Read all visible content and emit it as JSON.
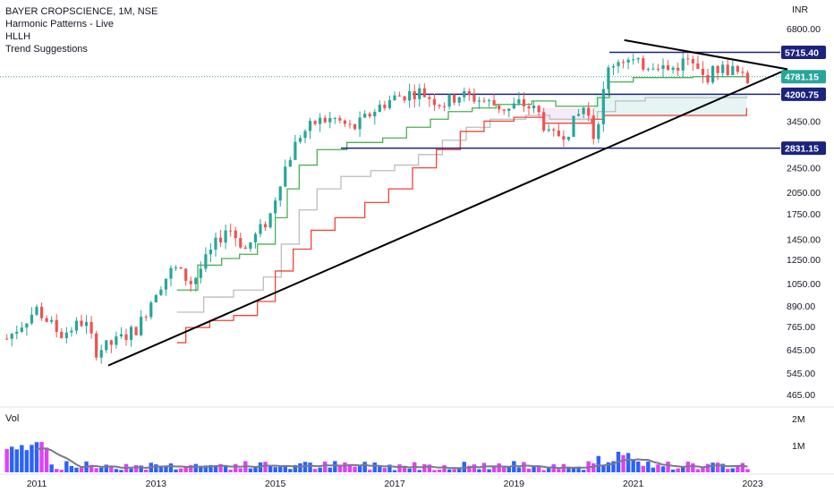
{
  "chart_data": {
    "type": "candlestick",
    "title": "BAYER CROPSCIENCE, 1M, NSE",
    "indicators": [
      "Harmonic Patterns - Live",
      "HLLH",
      "Trend Suggestions"
    ],
    "volume_label": "Vol",
    "price_axis_unit": "INR",
    "price_axis_scale": "log",
    "price_ticks": [
      "6800.00",
      "5715.40",
      "4781.15",
      "4200.75",
      "3450.00",
      "2831.15",
      "2450.00",
      "2050.00",
      "1750.00",
      "1450.00",
      "1250.00",
      "1050.00",
      "890.00",
      "765.00",
      "645.00",
      "545.00",
      "465.00"
    ],
    "volume_ticks": [
      "2M",
      "1M"
    ],
    "x_ticks": [
      "2011",
      "2013",
      "2015",
      "2017",
      "2019",
      "2021",
      "2023"
    ],
    "horizontal_levels": [
      5715.4,
      4200.75,
      2831.15
    ],
    "last_price": 4781.15,
    "colors": {
      "up": "#26a69a",
      "down": "#ef5350",
      "level_line": "#1a237e",
      "trend_line": "#000000",
      "hllh_green": "#4caf50",
      "hllh_red": "#f44336",
      "hllh_gray": "#bdbdbd",
      "vol_up": "#2962ff",
      "vol_down": "#e040fb",
      "vol_ma": "#787b86"
    }
  }
}
